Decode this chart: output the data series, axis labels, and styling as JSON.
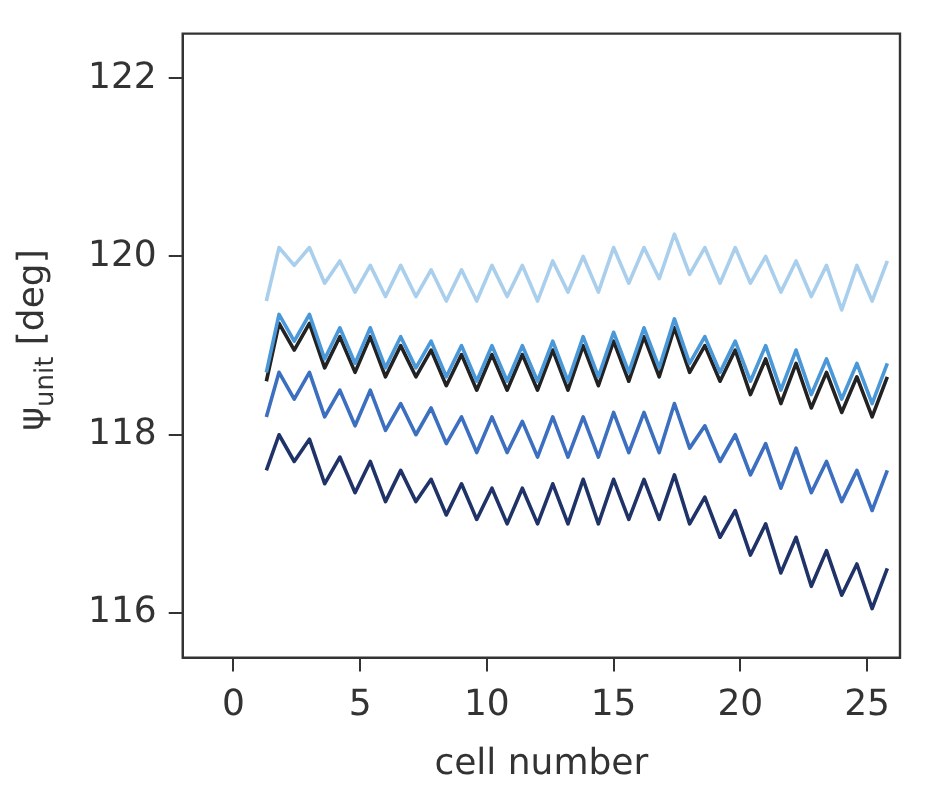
{
  "chart_data": {
    "type": "line",
    "xlabel": "cell number",
    "ylabel": "ψ$_{unit}$ [deg]",
    "x": [
      1.3,
      1.8,
      2.4,
      3.0,
      3.6,
      4.2,
      4.8,
      5.4,
      6.0,
      6.6,
      7.2,
      7.8,
      8.4,
      9.0,
      9.6,
      10.2,
      10.8,
      11.4,
      12.0,
      12.6,
      13.2,
      13.8,
      14.4,
      15.0,
      15.6,
      16.2,
      16.8,
      17.4,
      18.0,
      18.6,
      19.2,
      19.8,
      20.4,
      21.0,
      21.6,
      22.2,
      22.8,
      23.4,
      24.0,
      24.6,
      25.2,
      25.8
    ],
    "series": [
      {
        "color": "#1f3368",
        "values": [
          117.6,
          118.0,
          117.7,
          117.95,
          117.45,
          117.75,
          117.35,
          117.7,
          117.25,
          117.6,
          117.25,
          117.5,
          117.1,
          117.45,
          117.05,
          117.4,
          117.0,
          117.4,
          117.0,
          117.45,
          117.0,
          117.5,
          117.0,
          117.5,
          117.05,
          117.5,
          117.05,
          117.55,
          117.0,
          117.3,
          116.85,
          117.15,
          116.65,
          117.0,
          116.45,
          116.85,
          116.3,
          116.7,
          116.2,
          116.55,
          116.05,
          116.5
        ]
      },
      {
        "color": "#3c6fbf",
        "values": [
          118.2,
          118.7,
          118.4,
          118.7,
          118.2,
          118.5,
          118.1,
          118.5,
          118.05,
          118.35,
          118.0,
          118.3,
          117.9,
          118.2,
          117.8,
          118.2,
          117.8,
          118.15,
          117.75,
          118.2,
          117.75,
          118.2,
          117.75,
          118.25,
          117.8,
          118.25,
          117.8,
          118.35,
          117.85,
          118.1,
          117.7,
          118.0,
          117.55,
          117.9,
          117.4,
          117.85,
          117.35,
          117.7,
          117.25,
          117.6,
          117.15,
          117.6
        ]
      },
      {
        "color": "#4a98d8",
        "values": [
          118.7,
          119.35,
          119.05,
          119.35,
          118.85,
          119.2,
          118.8,
          119.2,
          118.75,
          119.1,
          118.75,
          119.05,
          118.65,
          119.0,
          118.6,
          119.0,
          118.6,
          119.0,
          118.6,
          119.05,
          118.6,
          119.1,
          118.65,
          119.15,
          118.7,
          119.2,
          118.75,
          119.3,
          118.8,
          119.1,
          118.7,
          119.05,
          118.6,
          119.0,
          118.5,
          118.95,
          118.45,
          118.85,
          118.4,
          118.8,
          118.35,
          118.8
        ]
      },
      {
        "color": "#222222",
        "values": [
          118.6,
          119.25,
          118.95,
          119.25,
          118.75,
          119.1,
          118.7,
          119.1,
          118.65,
          119.0,
          118.65,
          118.95,
          118.55,
          118.9,
          118.5,
          118.9,
          118.5,
          118.9,
          118.5,
          118.95,
          118.5,
          119.0,
          118.55,
          119.05,
          118.6,
          119.1,
          118.65,
          119.2,
          118.7,
          119.0,
          118.6,
          118.95,
          118.45,
          118.85,
          118.35,
          118.8,
          118.3,
          118.7,
          118.25,
          118.65,
          118.2,
          118.65
        ]
      },
      {
        "color": "#a9cfec",
        "values": [
          119.5,
          120.1,
          119.9,
          120.1,
          119.7,
          119.95,
          119.6,
          119.9,
          119.55,
          119.9,
          119.55,
          119.85,
          119.5,
          119.85,
          119.5,
          119.9,
          119.55,
          119.9,
          119.5,
          119.95,
          119.6,
          120.0,
          119.6,
          120.1,
          119.7,
          120.1,
          119.75,
          120.25,
          119.8,
          120.1,
          119.7,
          120.1,
          119.7,
          120.0,
          119.6,
          119.95,
          119.55,
          119.9,
          119.4,
          119.9,
          119.5,
          119.95
        ]
      }
    ],
    "xlim": [
      -2,
      26.3
    ],
    "xticks": [
      0,
      5,
      10,
      15,
      20,
      25
    ],
    "ylim": [
      115.5,
      122.5
    ],
    "yticks": [
      116,
      118,
      120,
      122
    ],
    "grid": false,
    "legend": false,
    "marker": "none",
    "line_style": "solid"
  }
}
